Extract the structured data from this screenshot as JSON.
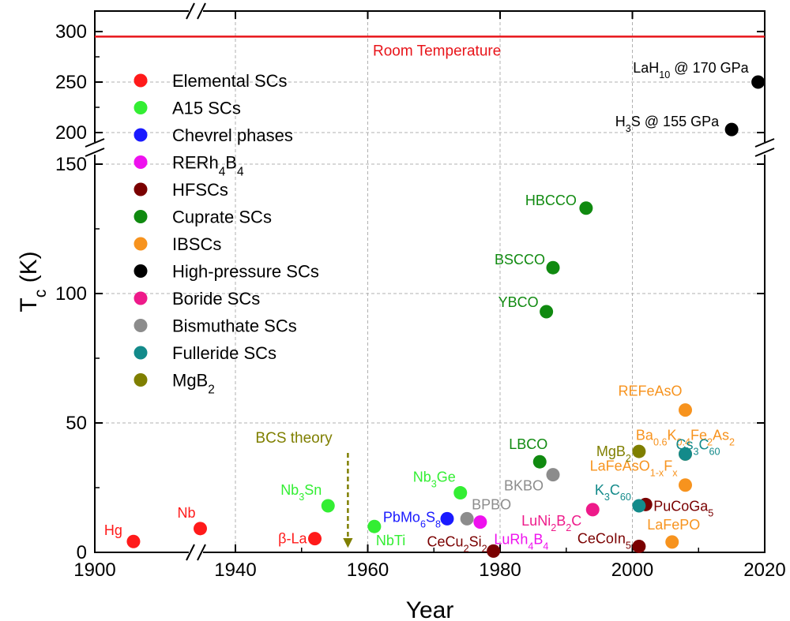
{
  "chart_data": {
    "type": "scatter",
    "title": "",
    "xlabel": "Year",
    "ylabel_main": "T",
    "ylabel_sub": "c",
    "ylabel_unit": " (K)",
    "xlim": [
      1900,
      2020
    ],
    "x_axis_break": [
      1940,
      1940
    ],
    "ylim_lower": [
      0,
      150
    ],
    "ylim_upper": [
      200,
      300
    ],
    "y_axis_break": [
      150,
      200
    ],
    "x_ticks": [
      1900,
      1940,
      1960,
      1980,
      2000,
      2020
    ],
    "y_ticks": [
      0,
      50,
      100,
      150,
      200,
      250,
      300
    ],
    "legend_position": "top-left",
    "room_temperature": {
      "value": 295,
      "label": "Room Temperature"
    },
    "bcs_theory": {
      "year": 1957,
      "label": "BCS theory"
    },
    "series": [
      {
        "name": "Elemental SCs",
        "color": "#ff1a1a",
        "points": [
          {
            "label": "Hg",
            "x": 1911,
            "y": 4.2
          },
          {
            "label": "Nb",
            "x": 1930,
            "y": 9.2
          },
          {
            "label": "β-La",
            "x": 1952,
            "y": 5.3
          }
        ]
      },
      {
        "name": "A15 SCs",
        "color": "#33ee33",
        "points": [
          {
            "label": "Nb3Sn",
            "x": 1954,
            "y": 18
          },
          {
            "label": "NbTi",
            "x": 1961,
            "y": 10
          },
          {
            "label": "Nb3Ge",
            "x": 1974,
            "y": 23
          }
        ]
      },
      {
        "name": "Chevrel phases",
        "color": "#1a1aff",
        "points": [
          {
            "label": "PbMo6S8",
            "x": 1972,
            "y": 13
          }
        ]
      },
      {
        "name": "RERh4B4",
        "color": "#ee11ee",
        "points": [
          {
            "label": "LuRh4B4",
            "x": 1977,
            "y": 11.7
          }
        ]
      },
      {
        "name": "HFSCs",
        "color": "#7a0000",
        "points": [
          {
            "label": "CeCu2Si2",
            "x": 1979,
            "y": 0.5
          },
          {
            "label": "CeCoIn5",
            "x": 2001,
            "y": 2.3
          },
          {
            "label": "PuCoGa5",
            "x": 2002,
            "y": 18.5
          }
        ]
      },
      {
        "name": "Cuprate SCs",
        "color": "#108a10",
        "points": [
          {
            "label": "LBCO",
            "x": 1986,
            "y": 35
          },
          {
            "label": "YBCO",
            "x": 1987,
            "y": 93
          },
          {
            "label": "BSCCO",
            "x": 1988,
            "y": 110
          },
          {
            "label": "HBCCO",
            "x": 1993,
            "y": 133
          }
        ]
      },
      {
        "name": "IBSCs",
        "color": "#f7931e",
        "points": [
          {
            "label": "LaFePO",
            "x": 2006,
            "y": 4
          },
          {
            "label": "LaFeAsO1-xFx",
            "x": 2008,
            "y": 26
          },
          {
            "label": "Ba0.6K0.4Fe2As2",
            "x": 2008,
            "y": 38
          },
          {
            "label": "REFeAsO",
            "x": 2008,
            "y": 55
          }
        ]
      },
      {
        "name": "High-pressure SCs",
        "color": "#000000",
        "points": [
          {
            "label": "H3S @ 155 GPa",
            "x": 2015,
            "y": 203
          },
          {
            "label": "LaH10 @ 170 GPa",
            "x": 2019,
            "y": 250
          }
        ]
      },
      {
        "name": "Boride SCs",
        "color": "#ee1a8a",
        "points": [
          {
            "label": "LuNi2B2C",
            "x": 1994,
            "y": 16.5
          }
        ]
      },
      {
        "name": "Bismuthate SCs",
        "color": "#8c8c8c",
        "points": [
          {
            "label": "BPBO",
            "x": 1975,
            "y": 13
          },
          {
            "label": "BKBO",
            "x": 1988,
            "y": 30
          }
        ]
      },
      {
        "name": "Fulleride SCs",
        "color": "#138a8a",
        "points": [
          {
            "label": "K3C60",
            "x": 2001,
            "y": 18
          },
          {
            "label": "Cs3C60",
            "x": 2008,
            "y": 38
          }
        ]
      },
      {
        "name": "MgB2",
        "color": "#7f7f00",
        "points": [
          {
            "label": "MgB2",
            "x": 2001,
            "y": 39
          }
        ]
      }
    ]
  }
}
